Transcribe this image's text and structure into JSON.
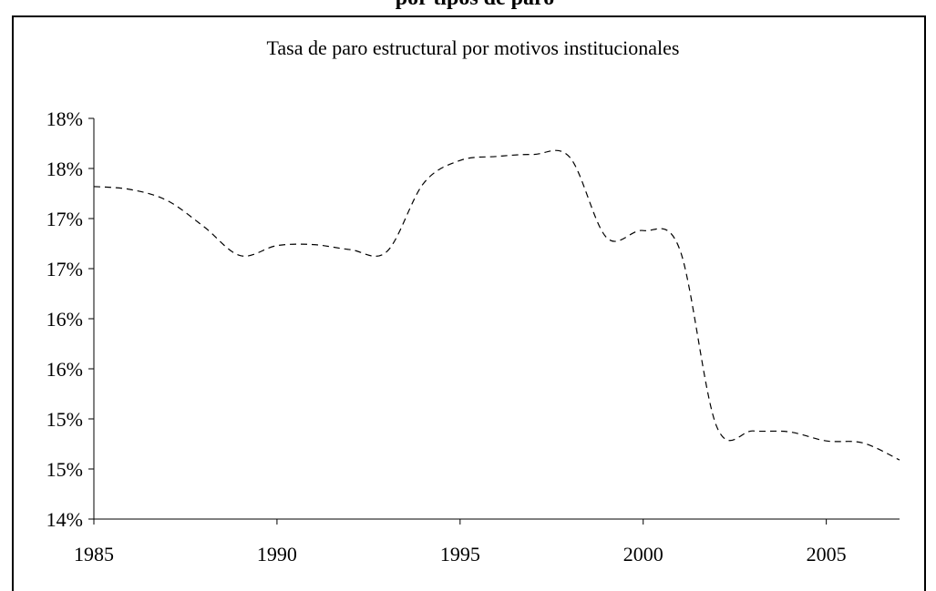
{
  "cropped_header_text": "por tipos de paro",
  "chart_data": {
    "type": "line",
    "title": "Tasa de paro estructural por motivos institucionales",
    "xlabel": "",
    "ylabel": "",
    "xlim": [
      1985,
      2007
    ],
    "ylim": [
      14,
      18
    ],
    "x_ticks": [
      1985,
      1990,
      1995,
      2000,
      2005
    ],
    "x_tick_labels": [
      "1985",
      "1990",
      "1995",
      "2000",
      "2005"
    ],
    "y_ticks": [
      14,
      14.5,
      15,
      15.5,
      16,
      16.5,
      17,
      17.5,
      18
    ],
    "y_tick_labels": [
      "14%",
      "15%",
      "15%",
      "16%",
      "16%",
      "17%",
      "17%",
      "18%",
      "18%"
    ],
    "grid": false,
    "legend": "none",
    "series": [
      {
        "line_style": "dashed",
        "color": "#000000",
        "x": [
          1985,
          1986,
          1987,
          1988,
          1989,
          1990,
          1991,
          1992,
          1993,
          1994,
          1995,
          1996,
          1997,
          1998,
          1999,
          2000,
          2001,
          2002,
          2003,
          2004,
          2005,
          2006,
          2007
        ],
        "values": [
          17.32,
          17.29,
          17.18,
          16.92,
          16.63,
          16.73,
          16.74,
          16.69,
          16.67,
          17.35,
          17.58,
          17.62,
          17.64,
          17.61,
          16.81,
          16.88,
          16.69,
          14.93,
          14.88,
          14.87,
          14.78,
          14.76,
          14.59
        ]
      }
    ]
  }
}
